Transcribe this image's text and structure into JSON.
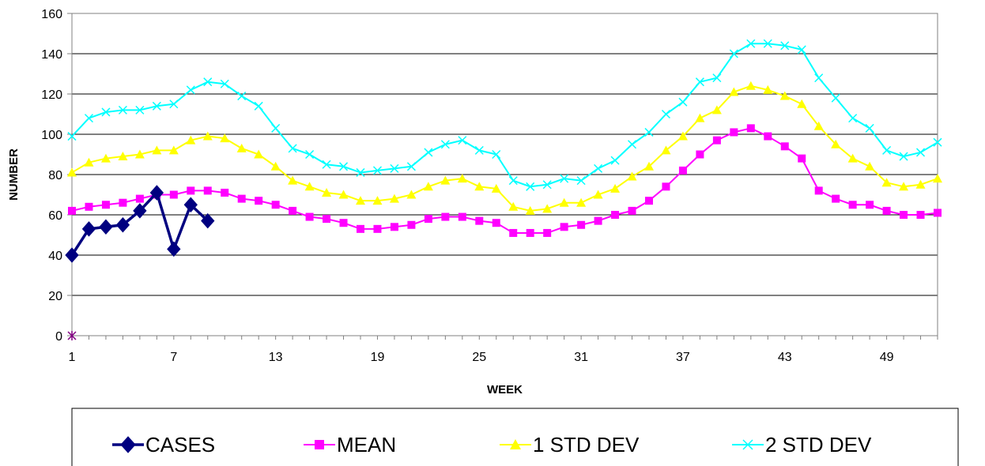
{
  "chart_data": {
    "type": "line",
    "title": "",
    "xlabel": "WEEK",
    "ylabel": "NUMBER",
    "ylim": [
      0,
      160
    ],
    "xlim": [
      1,
      52
    ],
    "y_ticks": [
      0,
      20,
      40,
      60,
      80,
      100,
      120,
      140,
      160
    ],
    "x_ticks": [
      1,
      7,
      13,
      19,
      25,
      31,
      37,
      43,
      49
    ],
    "grid": "horizontal",
    "legend_position": "bottom",
    "series": [
      {
        "name": "CASES",
        "color": "#000080",
        "marker": "diamond",
        "x": [
          1,
          2,
          3,
          4,
          5,
          6,
          7,
          8,
          9
        ],
        "values": [
          40,
          53,
          54,
          55,
          62,
          71,
          43,
          65,
          57
        ]
      },
      {
        "name": "MEAN",
        "color": "#ff00ff",
        "marker": "square",
        "x": [
          1,
          2,
          3,
          4,
          5,
          6,
          7,
          8,
          9,
          10,
          11,
          12,
          13,
          14,
          15,
          16,
          17,
          18,
          19,
          20,
          21,
          22,
          23,
          24,
          25,
          26,
          27,
          28,
          29,
          30,
          31,
          32,
          33,
          34,
          35,
          36,
          37,
          38,
          39,
          40,
          41,
          42,
          43,
          44,
          45,
          46,
          47,
          48,
          49,
          50,
          51,
          52
        ],
        "values": [
          62,
          64,
          65,
          66,
          68,
          70,
          70,
          72,
          72,
          71,
          68,
          67,
          65,
          62,
          59,
          58,
          56,
          53,
          53,
          54,
          55,
          58,
          59,
          59,
          57,
          56,
          51,
          51,
          51,
          54,
          55,
          57,
          60,
          62,
          67,
          74,
          82,
          90,
          97,
          101,
          103,
          99,
          94,
          88,
          72,
          68,
          65,
          65,
          62,
          60,
          60,
          61
        ]
      },
      {
        "name": "1 STD DEV",
        "color": "#ffff00",
        "marker": "triangle",
        "x": [
          1,
          2,
          3,
          4,
          5,
          6,
          7,
          8,
          9,
          10,
          11,
          12,
          13,
          14,
          15,
          16,
          17,
          18,
          19,
          20,
          21,
          22,
          23,
          24,
          25,
          26,
          27,
          28,
          29,
          30,
          31,
          32,
          33,
          34,
          35,
          36,
          37,
          38,
          39,
          40,
          41,
          42,
          43,
          44,
          45,
          46,
          47,
          48,
          49,
          50,
          51,
          52
        ],
        "values": [
          81,
          86,
          88,
          89,
          90,
          92,
          92,
          97,
          99,
          98,
          93,
          90,
          84,
          77,
          74,
          71,
          70,
          67,
          67,
          68,
          70,
          74,
          77,
          78,
          74,
          73,
          64,
          62,
          63,
          66,
          66,
          70,
          73,
          79,
          84,
          92,
          99,
          108,
          112,
          121,
          124,
          122,
          119,
          115,
          104,
          95,
          88,
          84,
          76,
          74,
          75,
          78
        ]
      },
      {
        "name": "2 STD DEV",
        "color": "#00ffff",
        "marker": "x",
        "x": [
          1,
          2,
          3,
          4,
          5,
          6,
          7,
          8,
          9,
          10,
          11,
          12,
          13,
          14,
          15,
          16,
          17,
          18,
          19,
          20,
          21,
          22,
          23,
          24,
          25,
          26,
          27,
          28,
          29,
          30,
          31,
          32,
          33,
          34,
          35,
          36,
          37,
          38,
          39,
          40,
          41,
          42,
          43,
          44,
          45,
          46,
          47,
          48,
          49,
          50,
          51,
          52
        ],
        "values": [
          99,
          108,
          111,
          112,
          112,
          114,
          115,
          122,
          126,
          125,
          119,
          114,
          103,
          93,
          90,
          85,
          84,
          81,
          82,
          83,
          84,
          91,
          95,
          97,
          92,
          90,
          77,
          74,
          75,
          78,
          77,
          83,
          87,
          95,
          101,
          110,
          116,
          126,
          128,
          140,
          145,
          145,
          144,
          142,
          128,
          118,
          108,
          103,
          92,
          89,
          91,
          96
        ]
      }
    ],
    "extra_marks": [
      {
        "x": 1,
        "y": 0,
        "color": "#800080",
        "marker": "star"
      }
    ]
  }
}
